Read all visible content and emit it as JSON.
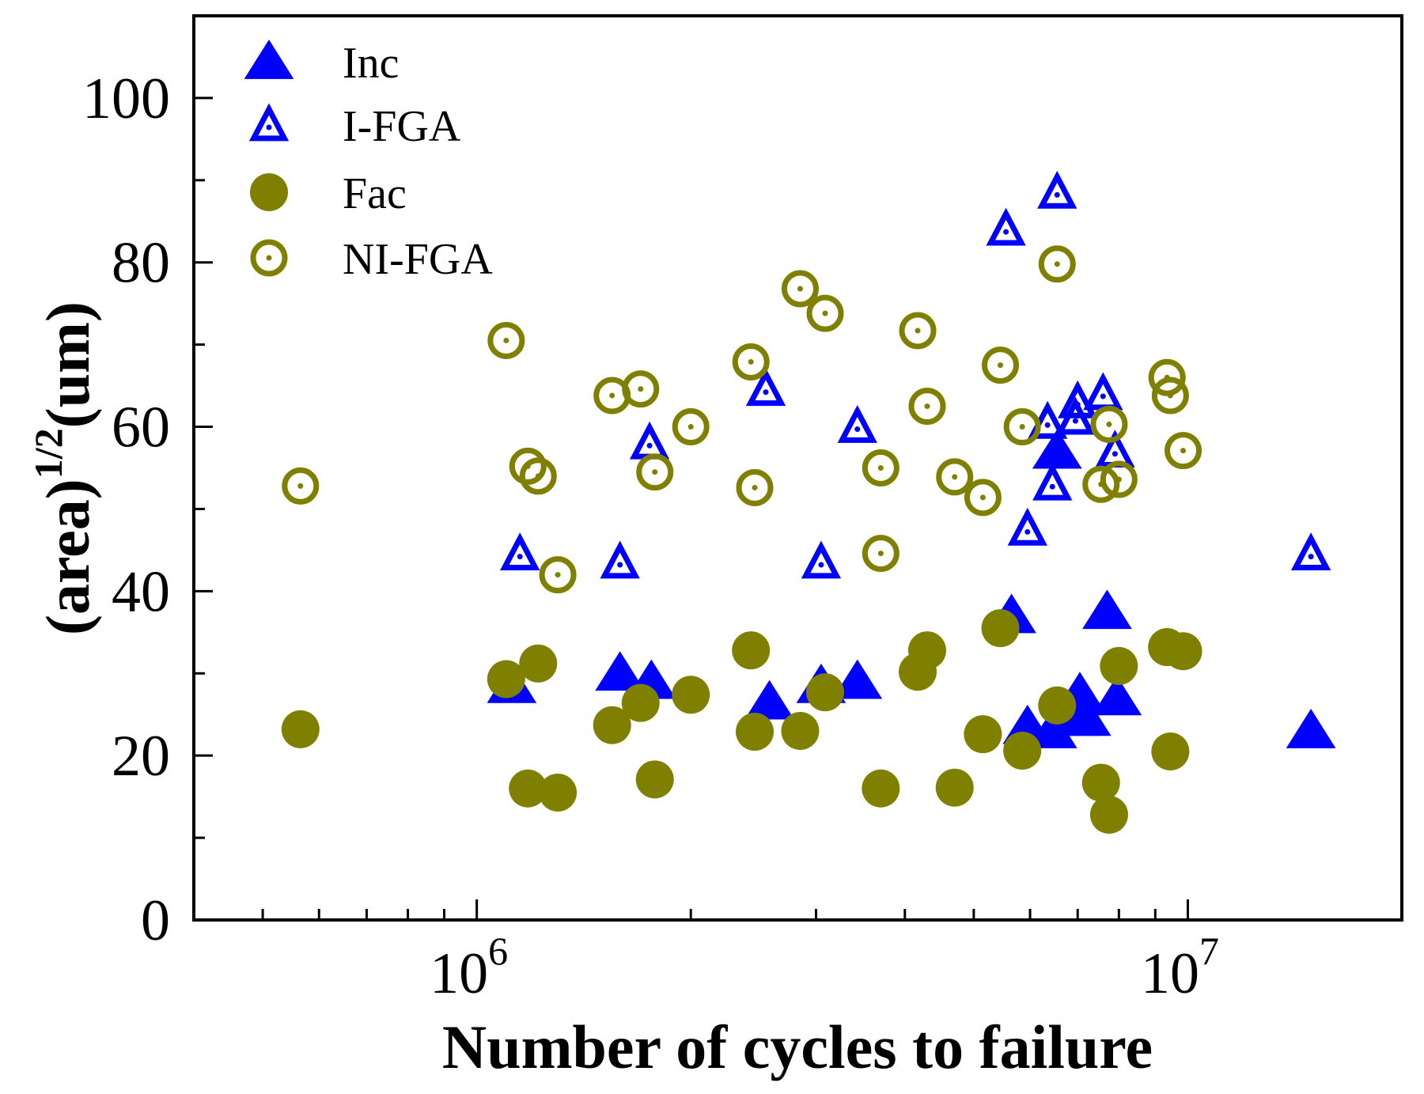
{
  "chart_data": {
    "type": "scatter",
    "title": "",
    "xlabel": "Number of cycles to failure",
    "ylabel_main": "(area)",
    "ylabel_sup": "1/2",
    "ylabel_unit": "(um)",
    "xscale": "log",
    "xlim": [
      400000,
      20000000
    ],
    "ylim": [
      0,
      110
    ],
    "grid": false,
    "legend_position": "top-left",
    "x_ticks": [
      {
        "value": 1000000,
        "base": "10",
        "exp": "6"
      },
      {
        "value": 10000000,
        "base": "10",
        "exp": "7"
      }
    ],
    "y_ticks": [
      {
        "value": 0,
        "label": "0"
      },
      {
        "value": 20,
        "label": "20"
      },
      {
        "value": 40,
        "label": "40"
      },
      {
        "value": 60,
        "label": "60"
      },
      {
        "value": 80,
        "label": "80"
      },
      {
        "value": 100,
        "label": "100"
      }
    ],
    "series": [
      {
        "name": "Inc",
        "marker": "triangle-filled",
        "color": "#0000ff",
        "points": [
          [
            1120000,
            28.5
          ],
          [
            1590000,
            30
          ],
          [
            1760000,
            29
          ],
          [
            2580000,
            26.5
          ],
          [
            3050000,
            28.5
          ],
          [
            3430000,
            29
          ],
          [
            5650000,
            37
          ],
          [
            5950000,
            23.5
          ],
          [
            6450000,
            23
          ],
          [
            6550000,
            57
          ],
          [
            6950000,
            24.5
          ],
          [
            7050000,
            27.5
          ],
          [
            7200000,
            24.5
          ],
          [
            7700000,
            37.5
          ],
          [
            7950000,
            27
          ],
          [
            14900000,
            23
          ]
        ]
      },
      {
        "name": "I-FGA",
        "marker": "triangle-open-dot",
        "color": "#0000ff",
        "points": [
          [
            1150000,
            44.5
          ],
          [
            1590000,
            43.5
          ],
          [
            1750000,
            58
          ],
          [
            2550000,
            64.5
          ],
          [
            3050000,
            43.5
          ],
          [
            3430000,
            60
          ],
          [
            5550000,
            84
          ],
          [
            5950000,
            47.5
          ],
          [
            6350000,
            60.5
          ],
          [
            6450000,
            53
          ],
          [
            6550000,
            88.5
          ],
          [
            6950000,
            61
          ],
          [
            7000000,
            63
          ],
          [
            7600000,
            64
          ],
          [
            7900000,
            57
          ],
          [
            14900000,
            44.5
          ]
        ]
      },
      {
        "name": "Fac",
        "marker": "circle-filled",
        "color": "#808000",
        "points": [
          [
            565000,
            23.2
          ],
          [
            1100000,
            29.3
          ],
          [
            1180000,
            16
          ],
          [
            1220000,
            31.2
          ],
          [
            1300000,
            15.5
          ],
          [
            1550000,
            23.7
          ],
          [
            1700000,
            26.4
          ],
          [
            1780000,
            17.1
          ],
          [
            2000000,
            27.4
          ],
          [
            2430000,
            32.8
          ],
          [
            2460000,
            22.9
          ],
          [
            2850000,
            23
          ],
          [
            3090000,
            27.7
          ],
          [
            3700000,
            16
          ],
          [
            4170000,
            30.2
          ],
          [
            4300000,
            32.8
          ],
          [
            4700000,
            16.1
          ],
          [
            5150000,
            22.6
          ],
          [
            5450000,
            35.5
          ],
          [
            5850000,
            20.6
          ],
          [
            6550000,
            26.1
          ],
          [
            7550000,
            16.7
          ],
          [
            7750000,
            12.8
          ],
          [
            8000000,
            30.9
          ],
          [
            9350000,
            33.2
          ],
          [
            9450000,
            20.5
          ],
          [
            9850000,
            32.7
          ]
        ]
      },
      {
        "name": "NI-FGA",
        "marker": "circle-open-dot",
        "color": "#808000",
        "points": [
          [
            565000,
            52.8
          ],
          [
            1100000,
            70.5
          ],
          [
            1180000,
            55.2
          ],
          [
            1220000,
            54
          ],
          [
            1300000,
            42
          ],
          [
            1550000,
            63.8
          ],
          [
            1700000,
            64.6
          ],
          [
            1780000,
            54.5
          ],
          [
            2000000,
            60
          ],
          [
            2430000,
            67.9
          ],
          [
            2460000,
            52.6
          ],
          [
            2850000,
            76.8
          ],
          [
            3090000,
            73.8
          ],
          [
            3700000,
            55
          ],
          [
            3700000,
            44.6
          ],
          [
            4170000,
            71.7
          ],
          [
            4300000,
            62.5
          ],
          [
            4700000,
            53.9
          ],
          [
            5150000,
            51.4
          ],
          [
            5450000,
            67.5
          ],
          [
            5850000,
            60
          ],
          [
            6550000,
            79.8
          ],
          [
            7550000,
            53
          ],
          [
            7750000,
            60.3
          ],
          [
            8000000,
            53.6
          ],
          [
            9350000,
            66
          ],
          [
            9450000,
            63.8
          ],
          [
            9850000,
            57.1
          ]
        ]
      }
    ]
  }
}
